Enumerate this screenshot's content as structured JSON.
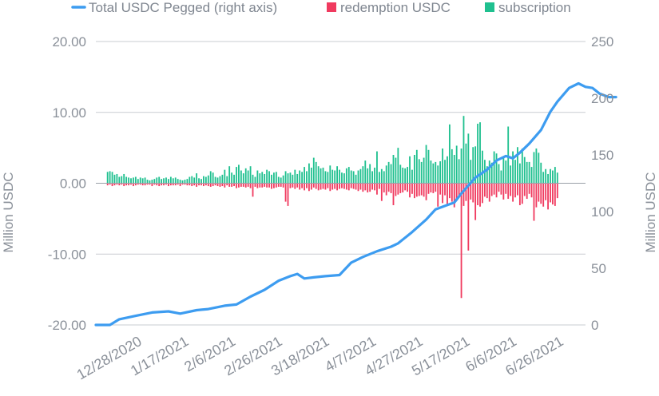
{
  "chart_data": {
    "type": "bar+line",
    "legend": {
      "placement": "top",
      "items": [
        {
          "name": "Total USDC Pegged (right axis)",
          "marker": "line",
          "color": "#3d9cf0"
        },
        {
          "name": "redemption USDC",
          "marker": "square",
          "color": "#f03a5f"
        },
        {
          "name": "subscription",
          "marker": "square",
          "color": "#1fc08f"
        }
      ]
    },
    "y_left": {
      "label": "Million USDC",
      "range": [
        -20,
        20
      ],
      "ticks": [
        20,
        10,
        0,
        -10,
        -20
      ],
      "tick_labels": [
        "20.00",
        "10.00",
        "0.00",
        "-10.00",
        "-20.00"
      ]
    },
    "y_right": {
      "label": "Million USDC",
      "range": [
        0,
        250
      ],
      "ticks": [
        250,
        200,
        150,
        100,
        50,
        0
      ],
      "tick_labels": [
        "250",
        "200",
        "150",
        "100",
        "50",
        "0"
      ]
    },
    "x": {
      "range": [
        "2020-12-08",
        "2021-07-05"
      ],
      "ticks": [
        "2020-12-28",
        "2021-01-17",
        "2021-02-06",
        "2021-02-26",
        "2021-03-18",
        "2021-04-07",
        "2021-04-27",
        "2021-05-17",
        "2021-06-06",
        "2021-06-26"
      ],
      "tick_labels": [
        "12/28/2020",
        "1/17/2021",
        "2/6/2021",
        "2/26/2021",
        "3/18/2021",
        "4/7/2021",
        "4/27/2021",
        "5/17/2021",
        "6/6/2021",
        "6/26/2021"
      ]
    },
    "grid": "horizontal",
    "line_series": {
      "name": "Total USDC Pegged (right axis)",
      "axis": "right",
      "points": [
        [
          "2020-12-08",
          0
        ],
        [
          "2020-12-14",
          0
        ],
        [
          "2020-12-18",
          5
        ],
        [
          "2020-12-25",
          8
        ],
        [
          "2021-01-01",
          11
        ],
        [
          "2021-01-08",
          12
        ],
        [
          "2021-01-13",
          10
        ],
        [
          "2021-01-20",
          13
        ],
        [
          "2021-01-25",
          14
        ],
        [
          "2021-02-01",
          17
        ],
        [
          "2021-02-06",
          18
        ],
        [
          "2021-02-12",
          25
        ],
        [
          "2021-02-18",
          31
        ],
        [
          "2021-02-24",
          39
        ],
        [
          "2021-03-01",
          43
        ],
        [
          "2021-03-04",
          45
        ],
        [
          "2021-03-07",
          41
        ],
        [
          "2021-03-11",
          42
        ],
        [
          "2021-03-16",
          43
        ],
        [
          "2021-03-22",
          44
        ],
        [
          "2021-03-27",
          55
        ],
        [
          "2021-04-01",
          60
        ],
        [
          "2021-04-07",
          65
        ],
        [
          "2021-04-13",
          69
        ],
        [
          "2021-04-16",
          72
        ],
        [
          "2021-04-22",
          82
        ],
        [
          "2021-04-28",
          93
        ],
        [
          "2021-05-02",
          102
        ],
        [
          "2021-05-06",
          105
        ],
        [
          "2021-05-10",
          108
        ],
        [
          "2021-05-13",
          116
        ],
        [
          "2021-05-19",
          130
        ],
        [
          "2021-05-24",
          137
        ],
        [
          "2021-05-28",
          145
        ],
        [
          "2021-06-01",
          149
        ],
        [
          "2021-06-04",
          147
        ],
        [
          "2021-06-07",
          152
        ],
        [
          "2021-06-11",
          160
        ],
        [
          "2021-06-16",
          172
        ],
        [
          "2021-06-20",
          188
        ],
        [
          "2021-06-23",
          197
        ],
        [
          "2021-06-28",
          209
        ],
        [
          "2021-07-02",
          213
        ],
        [
          "2021-07-05",
          210
        ],
        [
          "2021-07-08",
          209
        ],
        [
          "2021-07-11",
          204
        ],
        [
          "2021-07-15",
          201
        ],
        [
          "2021-07-18",
          201
        ]
      ]
    },
    "bar_series": [
      {
        "name": "subscription",
        "axis": "left",
        "start_date": "2020-12-13",
        "step_days": 1,
        "values": [
          1.6,
          1.7,
          1.6,
          1.2,
          1.3,
          0.9,
          1.0,
          1.3,
          0.9,
          0.8,
          0.7,
          0.8,
          0.9,
          0.6,
          0.8,
          0.7,
          0.8,
          0.5,
          0.4,
          0.5,
          0.6,
          0.8,
          0.9,
          0.6,
          0.7,
          0.8,
          0.6,
          0.9,
          0.7,
          0.8,
          0.6,
          0.5,
          0.4,
          0.5,
          0.6,
          0.9,
          1.0,
          0.8,
          1.4,
          0.7,
          0.6,
          1.0,
          0.9,
          1.1,
          1.7,
          1.5,
          0.9,
          0.8,
          1.0,
          1.2,
          1.9,
          1.0,
          2.4,
          1.5,
          1.2,
          2.3,
          2.6,
          1.8,
          1.4,
          2.1,
          1.8,
          2.4,
          1.2,
          0.9,
          1.8,
          1.4,
          1.6,
          1.3,
          1.9,
          1.7,
          1.2,
          1.5,
          1.6,
          0.9,
          0.8,
          1.1,
          1.7,
          1.4,
          1.5,
          1.2,
          1.9,
          1.3,
          1.8,
          1.6,
          2.3,
          1.7,
          2.8,
          2.2,
          3.6,
          3.0,
          2.4,
          2.1,
          2.2,
          1.7,
          1.6,
          2.5,
          1.9,
          1.8,
          2.4,
          1.9,
          1.5,
          1.4,
          2.1,
          2.3,
          1.8,
          1.7,
          1.2,
          1.8,
          2.0,
          2.4,
          3.2,
          2.1,
          2.7,
          1.7,
          2.2,
          4.5,
          1.6,
          2.0,
          1.7,
          2.5,
          3.0,
          2.7,
          4.0,
          3.6,
          5.0,
          2.6,
          2.2,
          2.1,
          2.3,
          3.8,
          1.9,
          4.0,
          4.7,
          3.4,
          3.0,
          3.6,
          5.4,
          4.7,
          3.2,
          2.8,
          3.0,
          2.5,
          3.1,
          4.9,
          3.3,
          3.8,
          8.3,
          4.8,
          4.0,
          5.3,
          3.4,
          4.9,
          9.5,
          5.6,
          7.0,
          3.3,
          5.1,
          5.2,
          8.4,
          8.6,
          4.6,
          3.3,
          2.4,
          3.2,
          2.9,
          4.5,
          4.2,
          2.7,
          1.8,
          3.7,
          3.2,
          8.0,
          2.5,
          4.5,
          3.3,
          5.1,
          2.8,
          4.9,
          3.7,
          3.0,
          3.0,
          2.3,
          4.4,
          4.9,
          4.3,
          2.9,
          1.6,
          2.0,
          1.3,
          2.0,
          1.8,
          2.3,
          1.5
        ]
      },
      {
        "name": "redemption USDC",
        "axis": "left",
        "start_date": "2020-12-13",
        "step_days": 1,
        "values": [
          -0.3,
          -0.2,
          -0.4,
          -0.3,
          -0.2,
          -0.3,
          -0.2,
          -0.4,
          -0.3,
          -0.3,
          -0.2,
          -0.4,
          -0.3,
          -0.2,
          -0.2,
          -0.3,
          -0.3,
          -0.2,
          -0.2,
          -0.4,
          -0.2,
          -0.3,
          -0.4,
          -0.3,
          -0.3,
          -0.2,
          -0.4,
          -0.3,
          -0.3,
          -0.3,
          -0.2,
          -0.4,
          -0.2,
          -0.2,
          -0.3,
          -0.3,
          -0.4,
          -0.3,
          -0.5,
          -0.3,
          -0.3,
          -0.4,
          -0.3,
          -0.4,
          -0.5,
          -0.4,
          -0.3,
          -0.4,
          -0.5,
          -0.4,
          -0.6,
          -0.3,
          -0.5,
          -0.5,
          -0.4,
          -0.7,
          -0.6,
          -0.5,
          -0.5,
          -0.6,
          -0.5,
          -0.7,
          -1.9,
          -0.5,
          -0.7,
          -0.6,
          -0.6,
          -0.5,
          -0.6,
          -0.6,
          -0.8,
          -0.7,
          -0.6,
          -0.5,
          -0.5,
          -0.6,
          -2.6,
          -3.2,
          -0.7,
          -0.6,
          -0.8,
          -0.6,
          -0.9,
          -0.7,
          -1.0,
          -0.7,
          -1.1,
          -0.9,
          -0.6,
          -0.8,
          -1.0,
          -0.9,
          -0.8,
          -0.9,
          -0.7,
          -1.1,
          -0.9,
          -0.8,
          -1.0,
          -0.8,
          -0.7,
          -0.8,
          -0.9,
          -1.0,
          -0.7,
          -0.8,
          -0.9,
          -1.1,
          -0.9,
          -1.2,
          -1.0,
          -1.3,
          -1.2,
          -0.9,
          -1.0,
          -1.6,
          -0.8,
          -2.5,
          -1.3,
          -1.7,
          -1.2,
          -1.4,
          -3.1,
          -1.8,
          -1.6,
          -1.4,
          -1.3,
          -1.0,
          -1.2,
          -2.0,
          -1.5,
          -2.1,
          -1.9,
          -1.8,
          -1.7,
          -1.9,
          -2.4,
          -1.5,
          -1.3,
          -1.4,
          -1.2,
          -3.3,
          -1.6,
          -2.8,
          -1.7,
          -3.0,
          -2.1,
          -2.6,
          -3.4,
          -2.5,
          -1.9,
          -16.2,
          -3.2,
          -2.5,
          -9.5,
          -2.3,
          -2.7,
          -5.2,
          -3.1,
          -3.3,
          -2.8,
          -1.9,
          -2.1,
          -2.6,
          -1.8,
          -1.6,
          -2.0,
          -1.2,
          -1.6,
          -2.3,
          -1.5,
          -2.2,
          -1.8,
          -2.6,
          -2.0,
          -1.7,
          -3.1,
          -2.9,
          -1.8,
          -2.2,
          -1.5,
          -2.0,
          -5.3,
          -3.4,
          -2.6,
          -2.9,
          -3.3,
          -2.4,
          -3.7,
          -2.7,
          -3.0,
          -3.2,
          -2.1
        ]
      }
    ]
  }
}
